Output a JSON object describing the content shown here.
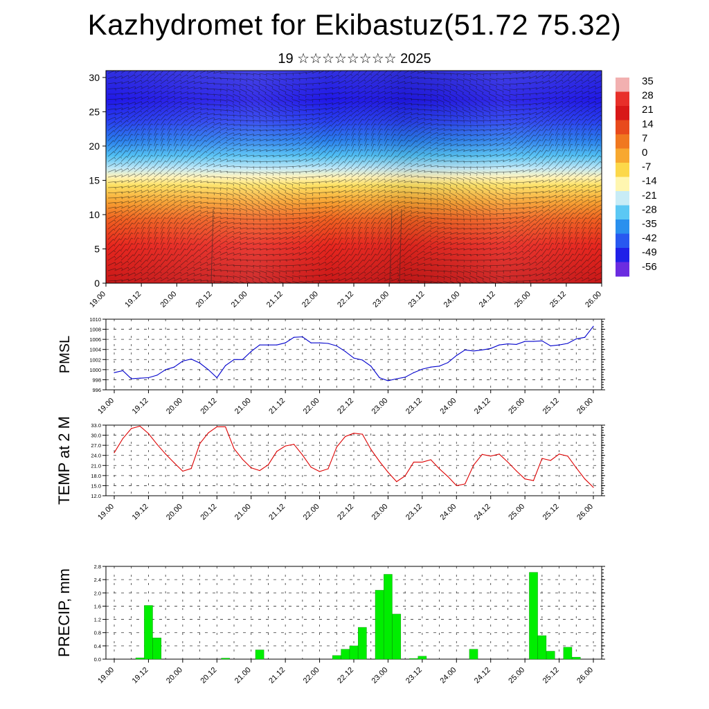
{
  "title": "Kazhydromet for Ekibastuz(51.72 75.32)",
  "subtitle": "19 ☆☆☆☆☆☆☆☆ 2025",
  "x_labels": [
    "19.00",
    "19.12",
    "20.00",
    "20.12",
    "21.00",
    "21.12",
    "22.00",
    "22.12",
    "23.00",
    "23.12",
    "24.00",
    "24.12",
    "25.00",
    "25.12",
    "26.00"
  ],
  "chart_data": [
    {
      "type": "heatmap",
      "name": "cross-section",
      "x_labels": [
        "19.00",
        "19.12",
        "20.00",
        "20.12",
        "21.00",
        "21.12",
        "22.00",
        "22.12",
        "23.00",
        "23.12",
        "24.00",
        "24.12",
        "25.00",
        "25.12",
        "26.00"
      ],
      "y_ticks": [
        0,
        5,
        10,
        15,
        20,
        25,
        30
      ],
      "ylim": [
        0,
        31
      ],
      "colorbar": {
        "labels": [
          "35",
          "28",
          "21",
          "14",
          "7",
          "0",
          "-7",
          "-14",
          "-21",
          "-28",
          "-35",
          "-42",
          "-49",
          "-56"
        ],
        "colors": [
          "#f2b0b0",
          "#e8302a",
          "#d81818",
          "#e84a1c",
          "#f07820",
          "#f7a830",
          "#fcd84a",
          "#fff6b0",
          "#c8ecf6",
          "#5cc8f4",
          "#2a90ee",
          "#2858f0",
          "#2020e8",
          "#6b2ce0"
        ]
      }
    },
    {
      "type": "line",
      "ylabel": "PMSL",
      "color": "#0000cc",
      "ylim": [
        996,
        1010
      ],
      "y_ticks": [
        996,
        998,
        1000,
        1002,
        1004,
        1006,
        1008,
        1010
      ],
      "y_tick_labels": [
        "996",
        "998",
        "1000",
        "1002",
        "1004",
        "1006",
        "1008",
        "1010"
      ],
      "x": [
        0,
        1,
        2,
        3,
        4,
        5,
        6,
        7,
        8,
        9,
        10,
        11,
        12,
        13,
        14,
        15,
        16,
        17,
        18,
        19,
        20,
        21,
        22,
        23,
        24,
        25,
        26,
        27,
        28,
        29,
        30,
        31,
        32,
        33,
        34,
        35,
        36,
        37,
        38,
        39,
        40,
        41,
        42,
        43,
        44,
        45,
        46,
        47,
        48,
        49,
        50,
        51,
        52,
        53,
        54,
        55,
        56
      ],
      "values": [
        999.4,
        999.8,
        998.2,
        998.3,
        998.4,
        998.9,
        1000,
        1000.5,
        1001.7,
        1002.1,
        1001.3,
        1000,
        998.4,
        1000.8,
        1002,
        1002,
        1003.6,
        1004.9,
        1004.9,
        1004.9,
        1005.3,
        1006.4,
        1006.5,
        1005.3,
        1005.3,
        1005.2,
        1004.7,
        1003.6,
        1002.3,
        1001.9,
        1000.7,
        998.4,
        997.8,
        998.2,
        998.5,
        999.4,
        1000.1,
        1000.5,
        1000.7,
        1001.4,
        1002.8,
        1003.9,
        1003.7,
        1003.9,
        1004.2,
        1004.9,
        1005.1,
        1005,
        1005.6,
        1005.6,
        1005.7,
        1004.7,
        1004.9,
        1005.2,
        1006.1,
        1006.4,
        1008.6
      ]
    },
    {
      "type": "line",
      "ylabel": "TEMP at 2 M",
      "color": "#dd0000",
      "ylim": [
        12,
        33
      ],
      "y_ticks": [
        12,
        15,
        18,
        21,
        24,
        27,
        30,
        33
      ],
      "y_tick_labels": [
        "12.0",
        "15.0",
        "18.0",
        "21.0",
        "24.0",
        "27.0",
        "30.0",
        "33.0"
      ],
      "x": [
        0,
        1,
        2,
        3,
        4,
        5,
        6,
        7,
        8,
        9,
        10,
        11,
        12,
        13,
        14,
        15,
        16,
        17,
        18,
        19,
        20,
        21,
        22,
        23,
        24,
        25,
        26,
        27,
        28,
        29,
        30,
        31,
        32,
        33,
        34,
        35,
        36,
        37,
        38,
        39,
        40,
        41,
        42,
        43,
        44,
        45,
        46,
        47,
        48,
        49,
        50,
        51,
        52,
        53,
        54,
        55,
        56
      ],
      "values": [
        24.8,
        29,
        32,
        32.7,
        30.5,
        27.3,
        24.4,
        21.8,
        19.3,
        20.1,
        27.5,
        30.7,
        32.5,
        32.5,
        26,
        22.8,
        20.3,
        19.5,
        21.2,
        25.2,
        26.8,
        27.3,
        24.1,
        20.5,
        19.2,
        20,
        26.5,
        29.6,
        30.6,
        30.3,
        25.8,
        22.2,
        19,
        16.2,
        17.9,
        22,
        22,
        22.7,
        20,
        17.7,
        15,
        15.5,
        21.1,
        24.3,
        23.8,
        24.4,
        22,
        19.4,
        17,
        16.5,
        23.1,
        22.5,
        24.4,
        23.8,
        20.3,
        17,
        14.5
      ]
    },
    {
      "type": "bar",
      "ylabel": "PRECIP, mm",
      "color": "#00ee00",
      "ylim": [
        0,
        2.8
      ],
      "y_ticks": [
        0,
        0.4,
        0.8,
        1.2,
        1.6,
        2.0,
        2.4,
        2.8
      ],
      "y_tick_labels": [
        "0.0",
        "0.4",
        "0.8",
        "1.2",
        "1.6",
        "2.0",
        "2.4",
        "2.8"
      ],
      "bars": [
        {
          "x": 3,
          "value": 0.04
        },
        {
          "x": 4,
          "value": 1.62
        },
        {
          "x": 5,
          "value": 0.64
        },
        {
          "x": 13,
          "value": 0.03
        },
        {
          "x": 17,
          "value": 0.28
        },
        {
          "x": 26,
          "value": 0.11
        },
        {
          "x": 27,
          "value": 0.3
        },
        {
          "x": 28,
          "value": 0.4
        },
        {
          "x": 29,
          "value": 0.96
        },
        {
          "x": 31,
          "value": 2.08
        },
        {
          "x": 32,
          "value": 2.56
        },
        {
          "x": 33,
          "value": 1.36
        },
        {
          "x": 35,
          "value": 0.02
        },
        {
          "x": 36,
          "value": 0.09
        },
        {
          "x": 42,
          "value": 0.3
        },
        {
          "x": 49,
          "value": 2.62
        },
        {
          "x": 50,
          "value": 0.71
        },
        {
          "x": 51,
          "value": 0.24
        },
        {
          "x": 53,
          "value": 0.36
        },
        {
          "x": 54,
          "value": 0.06
        }
      ]
    }
  ]
}
